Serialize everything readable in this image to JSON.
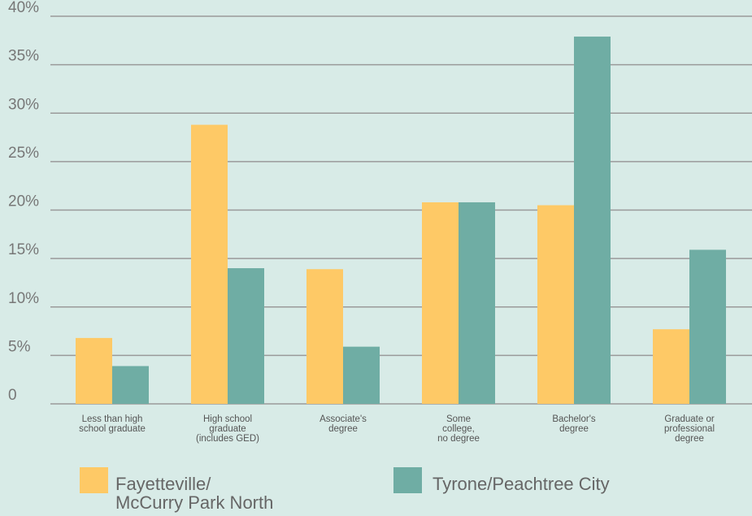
{
  "chart_data": {
    "type": "bar",
    "title": "",
    "xlabel": "",
    "ylabel": "",
    "ylim": [
      0,
      40
    ],
    "yticks": [
      0,
      5,
      10,
      15,
      20,
      25,
      30,
      35,
      40
    ],
    "ytick_labels": [
      "0",
      "5%",
      "10%",
      "15%",
      "20%",
      "25%",
      "30%",
      "35%",
      "40%"
    ],
    "grid": true,
    "legend_position": "bottom",
    "categories": [
      [
        "Less than high",
        "school graduate"
      ],
      [
        "High school",
        "graduate",
        "(includes GED)"
      ],
      [
        "Associate's",
        "degree"
      ],
      [
        "Some",
        "college,",
        "no degree"
      ],
      [
        "Bachelor's",
        "degree"
      ],
      [
        "Graduate or",
        "professional",
        "degree"
      ]
    ],
    "series": [
      {
        "name": [
          "Fayetteville/",
          "McCurry Park North"
        ],
        "color": "#fec966",
        "values": [
          6.8,
          28.8,
          13.9,
          20.8,
          20.5,
          7.7
        ]
      },
      {
        "name": [
          "Tyrone/Peachtree City"
        ],
        "color": "#6fada4",
        "values": [
          3.9,
          14.0,
          5.9,
          20.8,
          37.9,
          15.9
        ]
      }
    ]
  }
}
